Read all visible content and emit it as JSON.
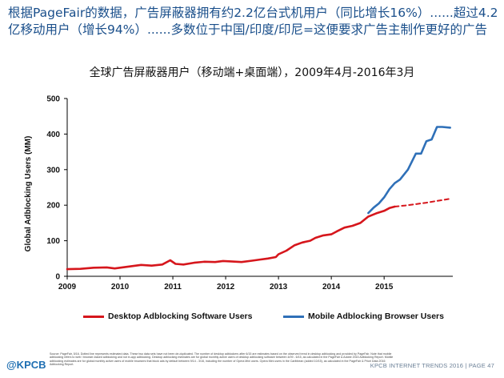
{
  "headline": "根据PageFair的数据，广告屏蔽器拥有约2.2亿台式机用户（同比增长16%）......超过4.2亿移动用户（增长94%）......多数位于中国/印度/印尼=这便要求广告主制作更好的广告",
  "logo_text": "@KPCB",
  "footer_text": "KPCB INTERNET TRENDS 2016  |  PAGE 47",
  "source_text": "Source: PageFair, 5/16. Dotted line represents estimated data. These two data sets have not been de-duplicated. The number of desktop adblockers after 6/15 are estimates based on the observed trend in desktop adblocking and provided by PageFair. Note that mobile adblocking refers to web / browser-based adblocking and not in-app adblocking. Desktop adblocking estimates are for global monthly active users of desktop adblocking software between 4/09 - 6/15, as calculated in the PageFair & Adobe 2015 Adblocking Report. Mobile adblocking estimates are for global monthly active users of mobile browsers that block ads by default between 9/14 - 3/16, including the number of Opera Mini users. Opera Mini users in the Caribbean (added 10/15), as calculated in the PageFair & Priori Data 2016 Adblocking Report.",
  "colors": {
    "desktop": "#d6161c",
    "mobile": "#2f70b8",
    "headline": "#1a4f8b"
  },
  "chart_data": {
    "type": "line",
    "title": "全球广告屏蔽器用户（移动端+桌面端），2009年4月-2016年3月",
    "ylabel": "Global Adblocking Users (MM)",
    "xlabel": "",
    "xlim": [
      2009,
      2016.3
    ],
    "ylim": [
      0,
      500
    ],
    "yticks": [
      0,
      100,
      200,
      300,
      400,
      500
    ],
    "xticks": [
      2009,
      2010,
      2011,
      2012,
      2013,
      2014,
      2015
    ],
    "grid": false,
    "legend_position": "bottom",
    "series": [
      {
        "name": "Desktop Adblocking Software Users",
        "color": "#d6161c",
        "style": "solid",
        "x": [
          2009.0,
          2009.25,
          2009.5,
          2009.75,
          2009.9,
          2010.0,
          2010.2,
          2010.4,
          2010.6,
          2010.8,
          2010.95,
          2011.05,
          2011.2,
          2011.4,
          2011.6,
          2011.8,
          2011.95,
          2012.1,
          2012.3,
          2012.5,
          2012.65,
          2012.8,
          2012.95,
          2013.0,
          2013.15,
          2013.3,
          2013.45,
          2013.6,
          2013.7,
          2013.85,
          2014.0,
          2014.1,
          2014.25,
          2014.4,
          2014.55,
          2014.7,
          2014.85,
          2015.0,
          2015.1,
          2015.2
        ],
        "y": [
          20,
          21,
          24,
          25,
          22,
          24,
          28,
          32,
          30,
          33,
          45,
          35,
          33,
          38,
          41,
          40,
          43,
          42,
          40,
          44,
          47,
          50,
          54,
          62,
          72,
          87,
          95,
          100,
          108,
          115,
          118,
          126,
          137,
          142,
          150,
          168,
          177,
          184,
          192,
          196
        ]
      },
      {
        "name": "",
        "color": "#d6161c",
        "style": "dashed",
        "x": [
          2015.2,
          2015.4,
          2015.6,
          2015.8,
          2016.0,
          2016.25
        ],
        "y": [
          196,
          199,
          203,
          207,
          212,
          218
        ]
      },
      {
        "name": "Mobile Adblocking Browser Users",
        "color": "#2f70b8",
        "style": "solid",
        "x": [
          2014.7,
          2014.8,
          2014.9,
          2015.0,
          2015.1,
          2015.2,
          2015.3,
          2015.45,
          2015.6,
          2015.7,
          2015.8,
          2015.9,
          2016.0,
          2016.1,
          2016.25
        ],
        "y": [
          178,
          193,
          205,
          222,
          245,
          262,
          272,
          300,
          345,
          345,
          380,
          385,
          420,
          420,
          418
        ]
      }
    ]
  }
}
